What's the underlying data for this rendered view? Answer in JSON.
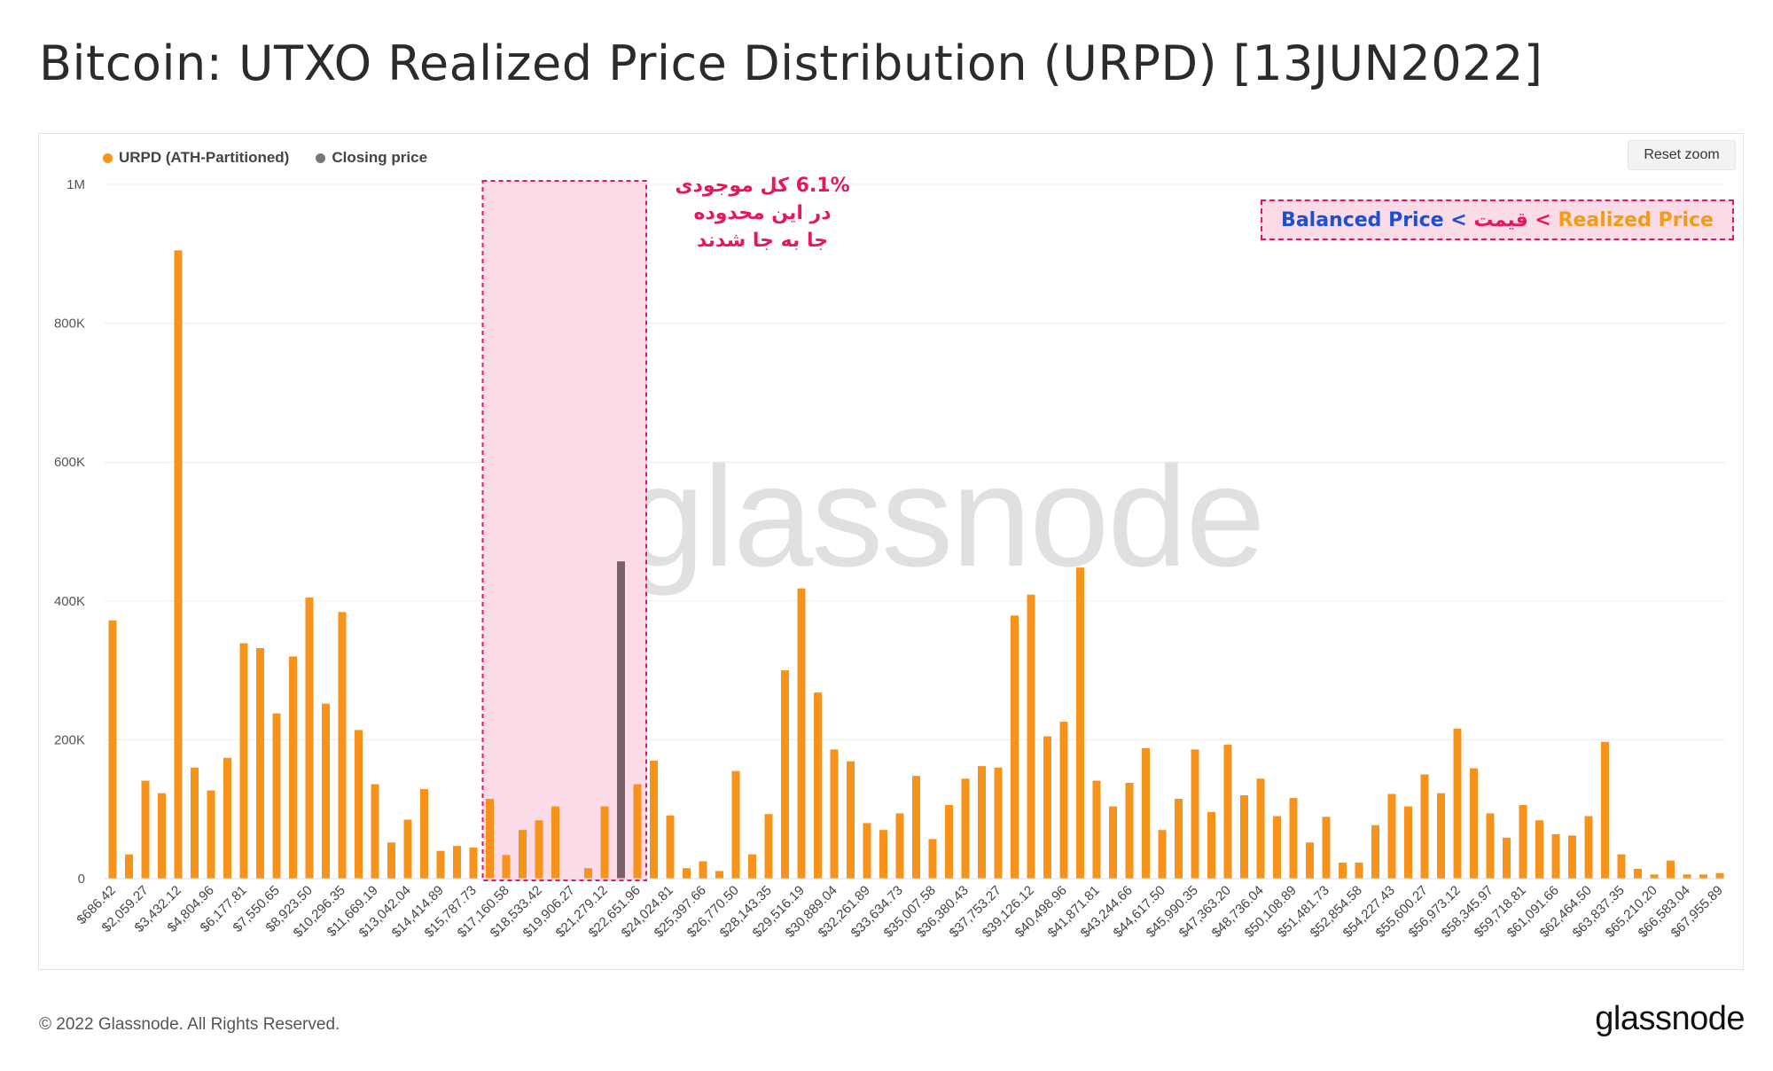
{
  "title": "Bitcoin: UTXO Realized Price Distribution (URPD) [13JUN2022]",
  "reset_zoom_label": "Reset zoom",
  "watermark": "glassnode",
  "footer": {
    "copyright": "© 2022 Glassnode. All Rights Reserved.",
    "logo": "glassnode"
  },
  "annotation": {
    "lines": [
      "6.1%  کل موجودی",
      "در این محدوده",
      "جا به جا شدند"
    ]
  },
  "price_box": {
    "part1": "Balanced Price",
    "sep1": " < ",
    "part2": "قیمت",
    "sep2": " < ",
    "part3": "Realized Price",
    "color1": "#1a4fd6",
    "color2": "#e8175d",
    "color3": "#f39c12"
  },
  "colors": {
    "urpd": "#f7931a",
    "closing": "#7a6069",
    "highlight_fill": "#fcdbe9",
    "highlight_border": "#e8175d"
  },
  "chart_data": {
    "type": "bar",
    "legend": [
      {
        "name": "URPD (ATH-Partitioned)",
        "color": "#f7931a"
      },
      {
        "name": "Closing price",
        "color": "#777777"
      }
    ],
    "y_ticks": [
      {
        "value": 0,
        "label": "0"
      },
      {
        "value": 200000,
        "label": "200K"
      },
      {
        "value": 400000,
        "label": "400K"
      },
      {
        "value": 600000,
        "label": "600K"
      },
      {
        "value": 800000,
        "label": "800K"
      },
      {
        "value": 1000000,
        "label": "1M"
      }
    ],
    "ylim": [
      0,
      1000000
    ],
    "x_tick_labels": [
      "$686.42",
      "$2,059.27",
      "$3,432.12",
      "$4,804.96",
      "$6,177.81",
      "$7,550.65",
      "$8,923.50",
      "$10,296.35",
      "$11,669.19",
      "$13,042.04",
      "$14,414.89",
      "$15,787.73",
      "$17,160.58",
      "$18,533.42",
      "$19,906.27",
      "$21,279.12",
      "$22,651.96",
      "$24,024.81",
      "$25,397.66",
      "$26,770.50",
      "$28,143.35",
      "$29,516.19",
      "$30,889.04",
      "$32,261.89",
      "$33,634.73",
      "$35,007.58",
      "$36,380.43",
      "$37,753.27",
      "$39,126.12",
      "$40,498.96",
      "$41,871.81",
      "$43,244.66",
      "$44,617.50",
      "$45,990.35",
      "$47,363.20",
      "$48,736.04",
      "$50,108.89",
      "$51,481.73",
      "$52,854.58",
      "$54,227.43",
      "$55,600.27",
      "$56,973.12",
      "$58,345.97",
      "$59,718.81",
      "$61,091.66",
      "$62,464.50",
      "$63,837.35",
      "$65,210.20",
      "$66,583.04",
      "$67,955.89"
    ],
    "values": [
      372000,
      35000,
      141000,
      123000,
      905000,
      160000,
      127000,
      174000,
      339000,
      332000,
      238000,
      320000,
      405000,
      252000,
      384000,
      214000,
      136000,
      52000,
      85000,
      129000,
      40000,
      47000,
      45000,
      115000,
      34000,
      70000,
      84000,
      104000,
      0,
      15000,
      104000,
      457000,
      136000,
      170000,
      91000,
      15000,
      25000,
      11000,
      155000,
      35000,
      93000,
      300000,
      418000,
      268000,
      186000,
      169000,
      80000,
      70000,
      94000,
      148000,
      57000,
      106000,
      144000,
      162000,
      160000,
      379000,
      409000,
      205000,
      226000,
      448000,
      141000,
      104000,
      138000,
      188000,
      70000,
      115000,
      186000,
      96000,
      193000,
      120000,
      144000,
      90000,
      116000,
      52000,
      89000,
      23000,
      23000,
      77000,
      122000,
      104000,
      150000,
      123000,
      216000,
      159000,
      94000,
      59000,
      106000,
      84000,
      64000,
      62000,
      90000,
      197000,
      35000,
      14000,
      6000,
      26000,
      6000,
      6000,
      8000
    ],
    "closing_price_index": 31,
    "highlight_range_indices": [
      23,
      32
    ]
  }
}
